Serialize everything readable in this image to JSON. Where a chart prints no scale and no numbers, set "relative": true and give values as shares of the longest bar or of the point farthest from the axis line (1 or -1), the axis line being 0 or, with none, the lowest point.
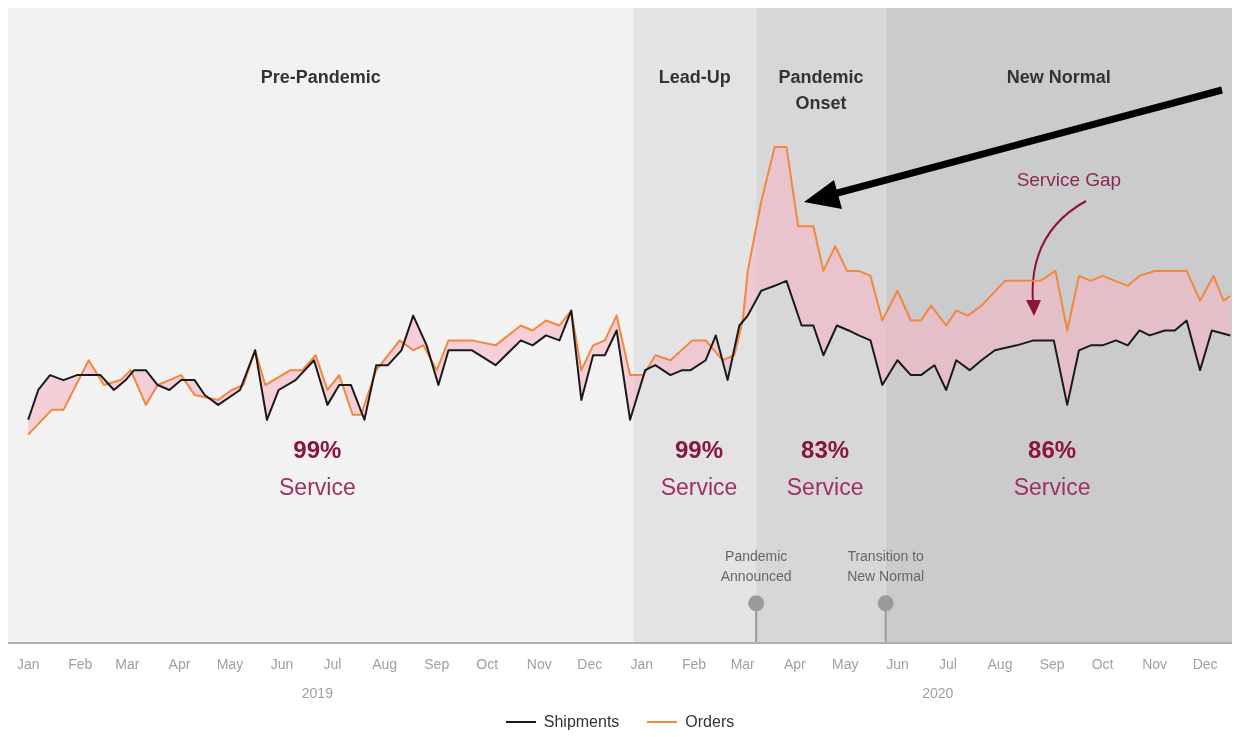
{
  "chart_data": {
    "type": "line",
    "relative": true,
    "legend": "bottom",
    "xlim": [
      "2018-12-20",
      "2020-12-17"
    ],
    "xticks": [
      {
        "value": "2019-01-01",
        "label": "Jan"
      },
      {
        "value": "2019-02-01",
        "label": "Feb"
      },
      {
        "value": "2019-03-01",
        "label": "Mar"
      },
      {
        "value": "2019-04-01",
        "label": "Apr"
      },
      {
        "value": "2019-05-01",
        "label": "May"
      },
      {
        "value": "2019-06-01",
        "label": "Jun"
      },
      {
        "value": "2019-07-01",
        "label": "Jul"
      },
      {
        "value": "2019-08-01",
        "label": "Aug"
      },
      {
        "value": "2019-09-01",
        "label": "Sep"
      },
      {
        "value": "2019-10-01",
        "label": "Oct"
      },
      {
        "value": "2019-11-01",
        "label": "Nov"
      },
      {
        "value": "2019-12-01",
        "label": "Dec"
      },
      {
        "value": "2020-01-01",
        "label": "Jan"
      },
      {
        "value": "2020-02-01",
        "label": "Feb"
      },
      {
        "value": "2020-03-01",
        "label": "Mar"
      },
      {
        "value": "2020-04-01",
        "label": "Apr"
      },
      {
        "value": "2020-05-01",
        "label": "May"
      },
      {
        "value": "2020-06-01",
        "label": "Jun"
      },
      {
        "value": "2020-07-01",
        "label": "Jul"
      },
      {
        "value": "2020-08-01",
        "label": "Aug"
      },
      {
        "value": "2020-09-01",
        "label": "Sep"
      },
      {
        "value": "2020-10-01",
        "label": "Oct"
      },
      {
        "value": "2020-11-01",
        "label": "Nov"
      },
      {
        "value": "2020-12-01",
        "label": "Dec"
      }
    ],
    "series": [
      {
        "name": "Shipments",
        "color": "#1a1a1a",
        "x": [
          "2019-01-01",
          "2019-01-07",
          "2019-01-14",
          "2019-01-22",
          "2019-01-30",
          "2019-02-13",
          "2019-02-21",
          "2019-02-28",
          "2019-03-05",
          "2019-03-12",
          "2019-03-19",
          "2019-03-26",
          "2019-04-02",
          "2019-04-10",
          "2019-04-16",
          "2019-04-24",
          "2019-05-07",
          "2019-05-16",
          "2019-05-23",
          "2019-05-30",
          "2019-06-09",
          "2019-06-20",
          "2019-06-28",
          "2019-07-05",
          "2019-07-12",
          "2019-07-20",
          "2019-07-27",
          "2019-08-03",
          "2019-08-11",
          "2019-08-18",
          "2019-08-26",
          "2019-09-02",
          "2019-09-08",
          "2019-09-15",
          "2019-09-22",
          "2019-10-06",
          "2019-10-21",
          "2019-10-28",
          "2019-11-05",
          "2019-11-13",
          "2019-11-20",
          "2019-11-26",
          "2019-12-03",
          "2019-12-10",
          "2019-12-17",
          "2019-12-25",
          "2020-01-03",
          "2020-01-09",
          "2020-01-18",
          "2020-01-25",
          "2020-01-30",
          "2020-02-08",
          "2020-02-14",
          "2020-02-21",
          "2020-02-28",
          "2020-03-04",
          "2020-03-12",
          "2020-03-20",
          "2020-03-27",
          "2020-04-05",
          "2020-04-12",
          "2020-04-18",
          "2020-04-26",
          "2020-05-03",
          "2020-05-09",
          "2020-05-16",
          "2020-05-23",
          "2020-06-01",
          "2020-06-09",
          "2020-06-15",
          "2020-06-23",
          "2020-06-30",
          "2020-07-06",
          "2020-07-14",
          "2020-07-21",
          "2020-07-29",
          "2020-08-11",
          "2020-08-21",
          "2020-09-02",
          "2020-09-10",
          "2020-09-17",
          "2020-09-24",
          "2020-10-01",
          "2020-10-09",
          "2020-10-16",
          "2020-10-23",
          "2020-10-29",
          "2020-11-07",
          "2020-11-13",
          "2020-11-20",
          "2020-11-28",
          "2020-12-05",
          "2020-12-16"
        ],
        "values": [
          0.45,
          0.51,
          0.54,
          0.53,
          0.54,
          0.54,
          0.51,
          0.53,
          0.55,
          0.55,
          0.52,
          0.51,
          0.53,
          0.53,
          0.5,
          0.48,
          0.51,
          0.59,
          0.45,
          0.51,
          0.53,
          0.57,
          0.48,
          0.52,
          0.52,
          0.45,
          0.56,
          0.56,
          0.59,
          0.66,
          0.6,
          0.52,
          0.59,
          0.59,
          0.59,
          0.56,
          0.61,
          0.6,
          0.62,
          0.61,
          0.67,
          0.49,
          0.58,
          0.58,
          0.63,
          0.45,
          0.55,
          0.56,
          0.54,
          0.55,
          0.55,
          0.57,
          0.62,
          0.53,
          0.64,
          0.66,
          0.71,
          0.72,
          0.73,
          0.64,
          0.64,
          0.58,
          0.64,
          0.63,
          0.62,
          0.61,
          0.52,
          0.57,
          0.54,
          0.54,
          0.56,
          0.51,
          0.57,
          0.55,
          0.57,
          0.59,
          0.6,
          0.61,
          0.61,
          0.48,
          0.59,
          0.6,
          0.6,
          0.61,
          0.6,
          0.63,
          0.62,
          0.63,
          0.63,
          0.65,
          0.55,
          0.63,
          0.62
        ]
      },
      {
        "name": "Orders",
        "color": "#f0883e",
        "x": [
          "2019-01-01",
          "2019-01-15",
          "2019-01-22",
          "2019-02-06",
          "2019-02-15",
          "2019-02-25",
          "2019-03-03",
          "2019-03-12",
          "2019-03-19",
          "2019-04-02",
          "2019-04-10",
          "2019-04-24",
          "2019-05-02",
          "2019-05-09",
          "2019-05-16",
          "2019-05-22",
          "2019-06-06",
          "2019-06-13",
          "2019-06-21",
          "2019-06-28",
          "2019-07-05",
          "2019-07-13",
          "2019-07-18",
          "2019-07-27",
          "2019-08-03",
          "2019-08-10",
          "2019-08-18",
          "2019-08-24",
          "2019-09-01",
          "2019-09-08",
          "2019-09-22",
          "2019-10-06",
          "2019-10-21",
          "2019-10-28",
          "2019-11-05",
          "2019-11-13",
          "2019-11-20",
          "2019-11-26",
          "2019-12-03",
          "2019-12-10",
          "2019-12-17",
          "2019-12-25",
          "2020-01-02",
          "2020-01-09",
          "2020-01-18",
          "2020-01-31",
          "2020-02-08",
          "2020-02-18",
          "2020-02-25",
          "2020-03-01",
          "2020-03-04",
          "2020-03-12",
          "2020-03-20",
          "2020-03-27",
          "2020-04-03",
          "2020-04-12",
          "2020-04-18",
          "2020-04-25",
          "2020-05-02",
          "2020-05-09",
          "2020-05-16",
          "2020-05-23",
          "2020-06-01",
          "2020-06-09",
          "2020-06-15",
          "2020-06-21",
          "2020-06-30",
          "2020-07-06",
          "2020-07-13",
          "2020-07-21",
          "2020-08-04",
          "2020-08-25",
          "2020-09-03",
          "2020-09-10",
          "2020-09-17",
          "2020-09-24",
          "2020-10-01",
          "2020-10-16",
          "2020-10-23",
          "2020-11-01",
          "2020-11-20",
          "2020-11-28",
          "2020-12-06",
          "2020-12-12",
          "2020-12-16"
        ],
        "values": [
          0.42,
          0.47,
          0.47,
          0.57,
          0.52,
          0.53,
          0.55,
          0.48,
          0.52,
          0.54,
          0.5,
          0.49,
          0.51,
          0.52,
          0.59,
          0.52,
          0.55,
          0.55,
          0.58,
          0.51,
          0.54,
          0.46,
          0.46,
          0.55,
          0.58,
          0.61,
          0.59,
          0.6,
          0.55,
          0.61,
          0.61,
          0.6,
          0.64,
          0.63,
          0.65,
          0.64,
          0.67,
          0.55,
          0.6,
          0.61,
          0.66,
          0.54,
          0.54,
          0.58,
          0.57,
          0.61,
          0.61,
          0.57,
          0.58,
          0.65,
          0.75,
          0.89,
          1,
          1,
          0.84,
          0.84,
          0.75,
          0.8,
          0.75,
          0.75,
          0.74,
          0.65,
          0.71,
          0.65,
          0.65,
          0.68,
          0.64,
          0.67,
          0.66,
          0.68,
          0.73,
          0.73,
          0.75,
          0.63,
          0.74,
          0.73,
          0.74,
          0.72,
          0.74,
          0.75,
          0.75,
          0.69,
          0.74,
          0.69,
          0.7
        ]
      }
    ],
    "bands": [
      {
        "axis": "x",
        "from": "2018-12-20",
        "to": "2019-12-27",
        "label": "Pre-Pandemic",
        "color": "#f2f2f2"
      },
      {
        "axis": "x",
        "from": "2019-12-27",
        "to": "2020-03-09",
        "label": "Lead-Up",
        "color": "#e3e3e5"
      },
      {
        "axis": "x",
        "from": "2020-03-09",
        "to": "2020-05-25",
        "label": "Pandemic Onset",
        "color": "#d7d7d9"
      },
      {
        "axis": "x",
        "from": "2020-05-25",
        "to": "2020-12-17",
        "label": "New Normal",
        "color": "#cbcbcd"
      }
    ],
    "ref_lines": [
      {
        "axis": "x",
        "value": "2020-03-09",
        "label": "Pandemic Announced",
        "color": "#9a9a9a"
      },
      {
        "axis": "x",
        "value": "2020-05-25",
        "label": "Transition to New Normal",
        "color": "#9a9a9a"
      }
    ],
    "annotations": [
      "99% Service",
      "99% Service",
      "83% Service",
      "86% Service",
      "Service Gap",
      "2019",
      "2020"
    ]
  }
}
